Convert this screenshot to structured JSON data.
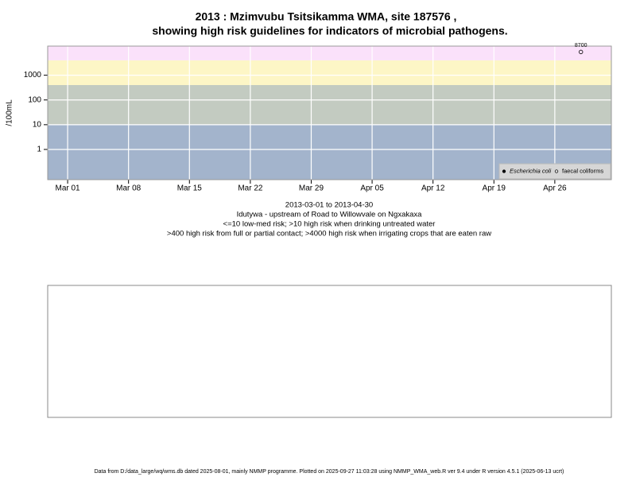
{
  "chart_data": {
    "type": "scatter",
    "title": [
      "2013 : Mzimvubu Tsitsikamma WMA, site 187576 ,",
      "showing high risk guidelines for indicators of microbial pathogens."
    ],
    "y_label": "/100mL",
    "y_log": true,
    "ylim": [
      0.06,
      15000
    ],
    "yticks": [
      1,
      10,
      100,
      1000
    ],
    "xlim": [
      "2013-02-26T17:00:00Z",
      "2013-05-02T12:00:00Z"
    ],
    "xticks": [
      {
        "value": "2013-03-01",
        "label": "Mar 01"
      },
      {
        "value": "2013-03-08",
        "label": "Mar 08"
      },
      {
        "value": "2013-03-15",
        "label": "Mar 15"
      },
      {
        "value": "2013-03-22",
        "label": "Mar 22"
      },
      {
        "value": "2013-03-29",
        "label": "Mar 29"
      },
      {
        "value": "2013-04-05",
        "label": "Apr 05"
      },
      {
        "value": "2013-04-12",
        "label": "Apr 12"
      },
      {
        "value": "2013-04-19",
        "label": "Apr 19"
      },
      {
        "value": "2013-04-26",
        "label": "Apr 26"
      }
    ],
    "grid": true,
    "thresholds": [
      10,
      400,
      4000
    ],
    "band_colors": [
      "#a3b4cc",
      "#c3cbc1",
      "#fdf6c6",
      "#fae1fa"
    ],
    "legend_position": "bottom-right",
    "series": [
      {
        "name": "Escherichia coli",
        "marker": "filled",
        "color": "#000000",
        "x": [],
        "values": []
      },
      {
        "name": "faecal coliforms",
        "marker": "open",
        "color": "#000000",
        "x": [
          "2013-04-29"
        ],
        "values": [
          8700
        ]
      }
    ],
    "notes": [
      "2013-03-01 to 2013-04-30",
      "Idutywa - upstream of Road to Willowvale on Ngxakaxa",
      "<=10 low-med risk; >10 high risk when drinking untreated water",
      ">400 high risk from full or partial contact; >4000 high risk when irrigating crops that are eaten raw"
    ]
  },
  "footer": "Data from D:/data_large/wq/wms.db dated 2025-08-01, mainly NMMP programme. Plotted on 2025-09-27 11:03:28 using NMMP_WMA_web.R ver 9.4 under R version 4.5.1 (2025-06-13 ucrt)"
}
